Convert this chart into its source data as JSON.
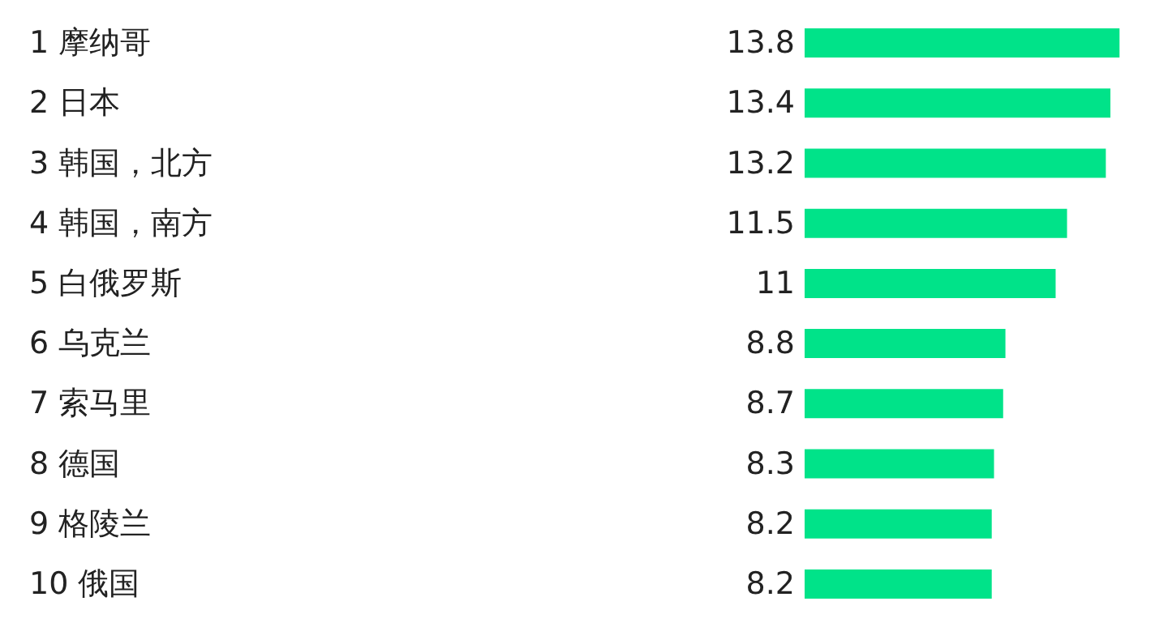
{
  "chart_data": {
    "type": "bar",
    "orientation": "horizontal",
    "categories": [
      "1 摩纳哥",
      "2 日本",
      "3 韩国，北方",
      "4 韩国，南方",
      "5 白俄罗斯",
      "6 乌克兰",
      "7 索马里",
      "8 德国",
      "9 格陵兰",
      "10 俄国"
    ],
    "values": [
      13.8,
      13.4,
      13.2,
      11.5,
      11,
      8.8,
      8.7,
      8.3,
      8.2,
      8.2
    ],
    "color": "#00e389",
    "data_labels": true
  }
}
